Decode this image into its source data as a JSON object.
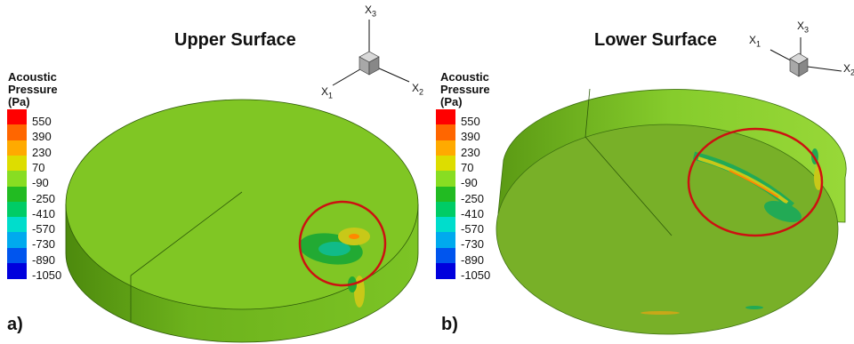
{
  "legend": {
    "title_lines": [
      "Acoustic",
      "Pressure",
      "(Pa)"
    ],
    "levels": [
      "550",
      "390",
      "230",
      "70",
      "-90",
      "-250",
      "-410",
      "-570",
      "-730",
      "-890",
      "-1050"
    ],
    "colors": [
      "#ff0000",
      "#ff6600",
      "#ffaa00",
      "#dddd00",
      "#88dd22",
      "#22bb22",
      "#00cc66",
      "#00ddcc",
      "#00aaee",
      "#0055ee",
      "#0000dd"
    ]
  },
  "axes": {
    "x1": "X",
    "x2": "X",
    "x3": "X",
    "sub1": "1",
    "sub2": "2",
    "sub3": "3"
  },
  "panels": {
    "a": {
      "title": "Upper Surface",
      "label": "a)"
    },
    "b": {
      "title": "Lower Surface",
      "label": "b)"
    }
  },
  "colors": {
    "disk_top": "#7ec621",
    "disk_side": "#62a016",
    "highlight_circle": "#cc1111"
  }
}
